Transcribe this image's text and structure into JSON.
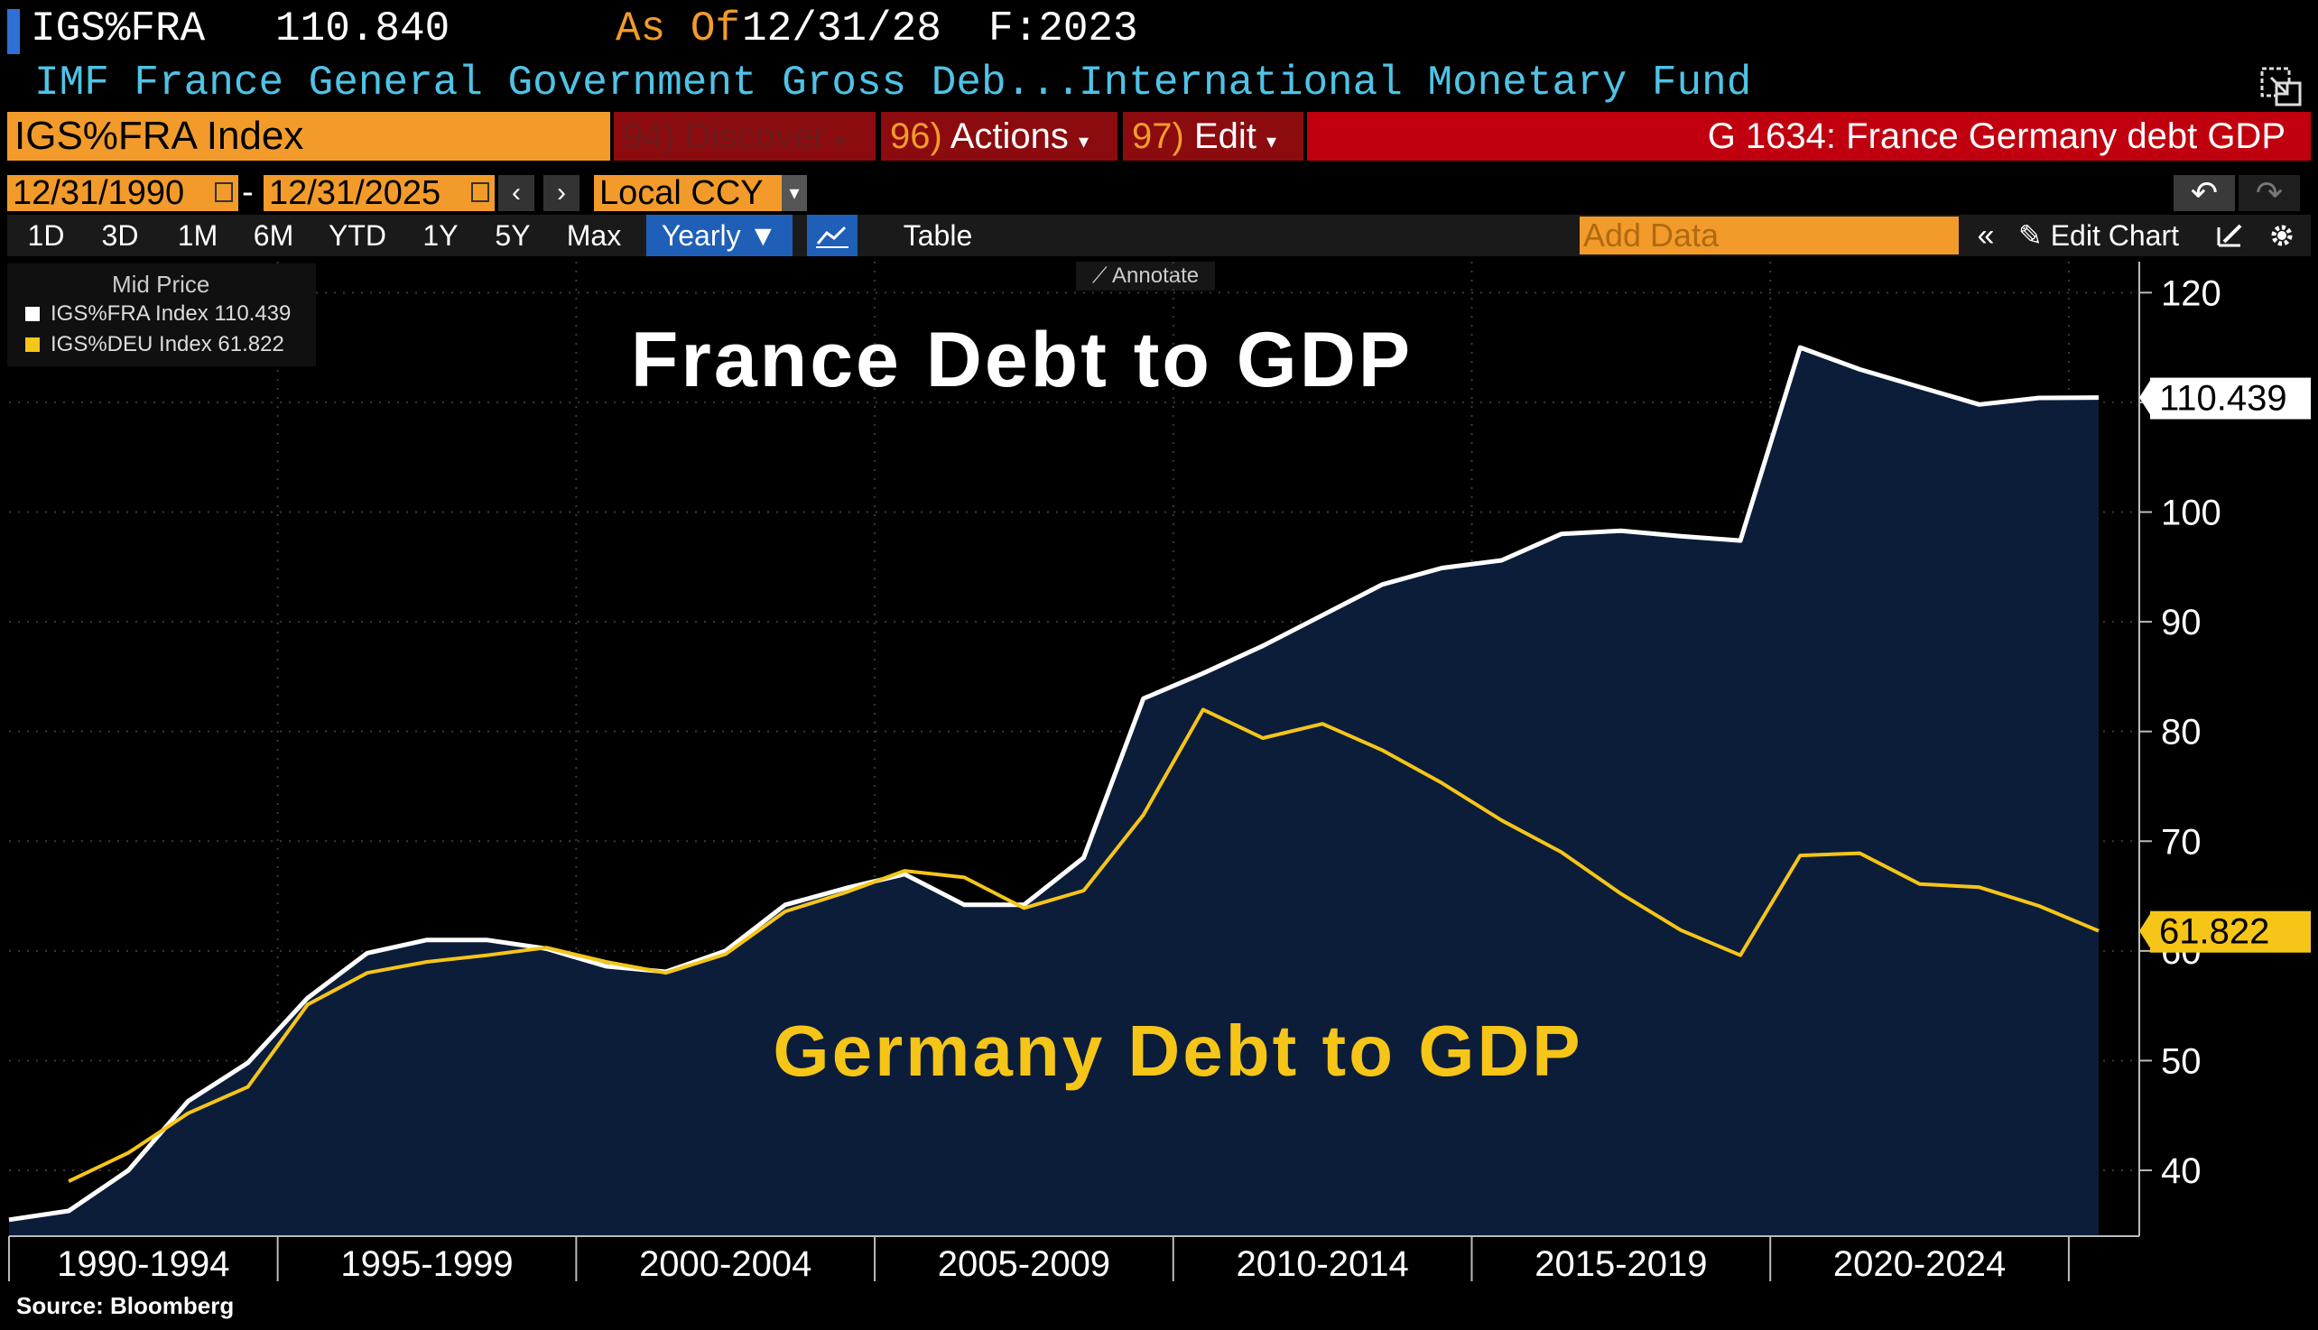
{
  "header": {
    "ticker": "IGS%FRA",
    "last_price": "110.840",
    "asof_label": "As Of",
    "asof_date": "12/31/28",
    "freq": "F:2023",
    "description": "IMF France General Government Gross Deb...",
    "source_name": "International Monetary Fund"
  },
  "command_bar": {
    "security": "IGS%FRA Index",
    "discover_num": "94)",
    "discover_label": "Discover",
    "actions_num": "96)",
    "actions_label": "Actions",
    "edit_num": "97)",
    "edit_label": "Edit",
    "chart_title": "G 1634: France Germany debt GDP"
  },
  "range": {
    "start": "12/31/1990",
    "end": "12/31/2025",
    "currency": "Local CCY"
  },
  "toolbar": {
    "periods": [
      "1D",
      "3D",
      "1M",
      "6M",
      "YTD",
      "1Y",
      "5Y",
      "Max"
    ],
    "frequency": "Yearly ▼",
    "table_label": "Table",
    "add_data_placeholder": "Add Data",
    "edit_chart_label": "Edit Chart",
    "annotate_label": "Annotate"
  },
  "legend": {
    "title": "Mid Price",
    "items": [
      {
        "label": "IGS%FRA Index 110.439",
        "color": "#ffffff"
      },
      {
        "label": "IGS%DEU Index 61.822",
        "color": "#f5c518"
      }
    ]
  },
  "annotations": {
    "france": "France Debt to GDP",
    "germany": "Germany Debt to GDP"
  },
  "footer": {
    "source": "Source: Bloomberg"
  },
  "colors": {
    "background": "#000000",
    "area_fill": "#0c1d3a",
    "france_line": "#ffffff",
    "germany_line": "#f5c518",
    "accent_orange": "#f29b2b",
    "menu_red": "#8b0b0f",
    "title_red": "#c0000e",
    "header_blue": "#4ec3e6"
  },
  "chart_data": {
    "type": "area",
    "x": [
      1990,
      1991,
      1992,
      1993,
      1994,
      1995,
      1996,
      1997,
      1998,
      1999,
      2000,
      2001,
      2002,
      2003,
      2004,
      2005,
      2006,
      2007,
      2008,
      2009,
      2010,
      2011,
      2012,
      2013,
      2014,
      2015,
      2016,
      2017,
      2018,
      2019,
      2020,
      2021,
      2022,
      2023,
      2024,
      2025
    ],
    "series": [
      {
        "name": "IGS%FRA Index",
        "values": [
          35.5,
          36.3,
          40.0,
          46.3,
          49.8,
          55.7,
          59.8,
          61.0,
          61.0,
          60.2,
          58.6,
          58.1,
          60.0,
          64.2,
          65.7,
          67.0,
          64.2,
          64.2,
          68.5,
          83.0,
          85.3,
          87.8,
          90.6,
          93.4,
          94.9,
          95.6,
          98.0,
          98.3,
          97.8,
          97.4,
          115.0,
          113.0,
          111.4,
          109.8,
          110.4,
          110.439
        ],
        "last_label": "110.439"
      },
      {
        "name": "IGS%DEU Index",
        "values": [
          null,
          39.0,
          41.6,
          45.2,
          47.6,
          55.1,
          58.0,
          59.0,
          59.6,
          60.3,
          59.0,
          58.0,
          59.7,
          63.6,
          65.3,
          67.3,
          66.7,
          63.9,
          65.5,
          72.4,
          82.0,
          79.4,
          80.7,
          78.3,
          75.3,
          71.9,
          69.0,
          65.2,
          61.9,
          59.6,
          68.7,
          68.9,
          66.1,
          65.8,
          64.1,
          61.822
        ],
        "last_label": "61.822"
      }
    ],
    "x_tick_labels": [
      "1990-1994",
      "1995-1999",
      "2000-2004",
      "2005-2009",
      "2010-2014",
      "2015-2019",
      "2020-2024"
    ],
    "y_ticks": [
      40,
      50,
      60,
      70,
      80,
      90,
      100,
      110,
      120
    ],
    "y_tick_labels": [
      "40",
      "50",
      "60",
      "70",
      "80",
      "90",
      "100",
      "",
      "120"
    ],
    "ylim": [
      34,
      122
    ],
    "grid": true,
    "legend_position": "top-left"
  }
}
